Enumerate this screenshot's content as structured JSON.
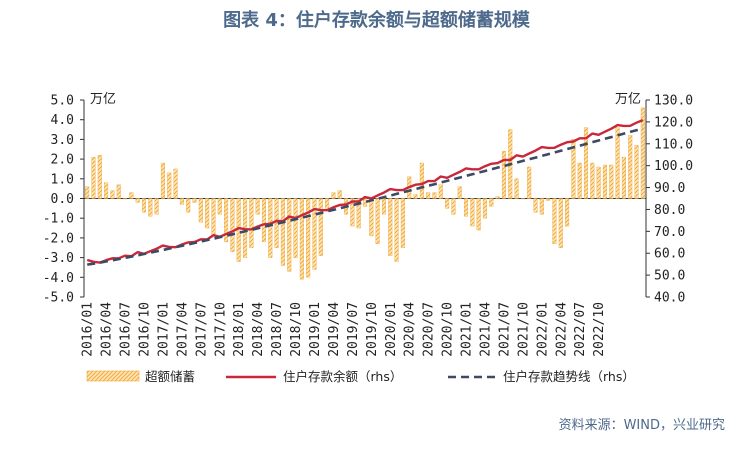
{
  "title": "图表 4：住户存款余额与超额储蓄规模",
  "source": "资料来源：WIND，兴业研究",
  "chart_data": {
    "type": "bar+line",
    "left_axis": {
      "unit": "万亿",
      "ylim": [
        -5,
        5
      ],
      "ticks": [
        "5.0",
        "4.0",
        "3.0",
        "2.0",
        "1.0",
        "0.0",
        "-1.0",
        "-2.0",
        "-3.0",
        "-4.0",
        "-5.0"
      ]
    },
    "right_axis": {
      "unit": "万亿",
      "ylim": [
        40,
        130
      ],
      "ticks": [
        "130.0",
        "120.0",
        "110.0",
        "100.0",
        "90.0",
        "80.0",
        "70.0",
        "60.0",
        "50.0",
        "40.0"
      ]
    },
    "x_tick_labels": [
      "2016/01",
      "2016/04",
      "2016/07",
      "2016/10",
      "2017/01",
      "2017/04",
      "2017/07",
      "2017/10",
      "2018/01",
      "2018/04",
      "2018/07",
      "2018/10",
      "2019/01",
      "2019/04",
      "2019/07",
      "2019/10",
      "2020/01",
      "2020/04",
      "2020/07",
      "2020/10",
      "2021/01",
      "2021/04",
      "2021/07",
      "2021/10",
      "2022/01",
      "2022/04",
      "2022/07",
      "2022/10"
    ],
    "excess_savings": [
      0.6,
      2.1,
      2.2,
      0.8,
      0.4,
      0.7,
      0.0,
      0.3,
      -0.2,
      -0.7,
      -0.9,
      -0.8,
      1.8,
      1.3,
      1.5,
      -0.3,
      -0.7,
      -0.2,
      -1.2,
      -1.5,
      -1.9,
      -0.8,
      -2.2,
      -2.7,
      -3.2,
      -3.0,
      -2.5,
      -0.8,
      -2.2,
      -3.0,
      -2.5,
      -3.4,
      -3.7,
      -3.0,
      -4.1,
      -4.0,
      -3.6,
      -2.9,
      -0.5,
      0.3,
      0.4,
      -0.8,
      -1.4,
      -1.5,
      -0.4,
      -1.9,
      -2.3,
      -0.8,
      -2.9,
      -3.2,
      -2.5,
      1.1,
      0.2,
      1.8,
      0.3,
      0.3,
      0.7,
      -0.5,
      -0.8,
      0.6,
      -0.9,
      -1.4,
      -1.6,
      -1.0,
      -0.4,
      0.1,
      2.4,
      3.5,
      1.0,
      0.0,
      1.6,
      -0.7,
      -0.8,
      -0.1,
      -2.3,
      -2.5,
      -1.4,
      3.0,
      1.8,
      3.6,
      1.8,
      1.6,
      1.7,
      1.7,
      3.6,
      2.1,
      3.2,
      2.7,
      4.6
    ],
    "series": [
      {
        "name": "超额储蓄",
        "kind": "bar",
        "axis": "left",
        "color": "#f0a93b"
      },
      {
        "name": "住户存款余额（rhs）",
        "kind": "line",
        "axis": "right",
        "color": "#c9283b"
      },
      {
        "name": "住户存款趋势线（rhs）",
        "kind": "dashed-line",
        "axis": "right",
        "color": "#3c4a63"
      }
    ],
    "deposit_balance_start": 55.5,
    "deposit_balance_end": 120.5,
    "trend_start": 54.8,
    "trend_end": 117.0
  }
}
